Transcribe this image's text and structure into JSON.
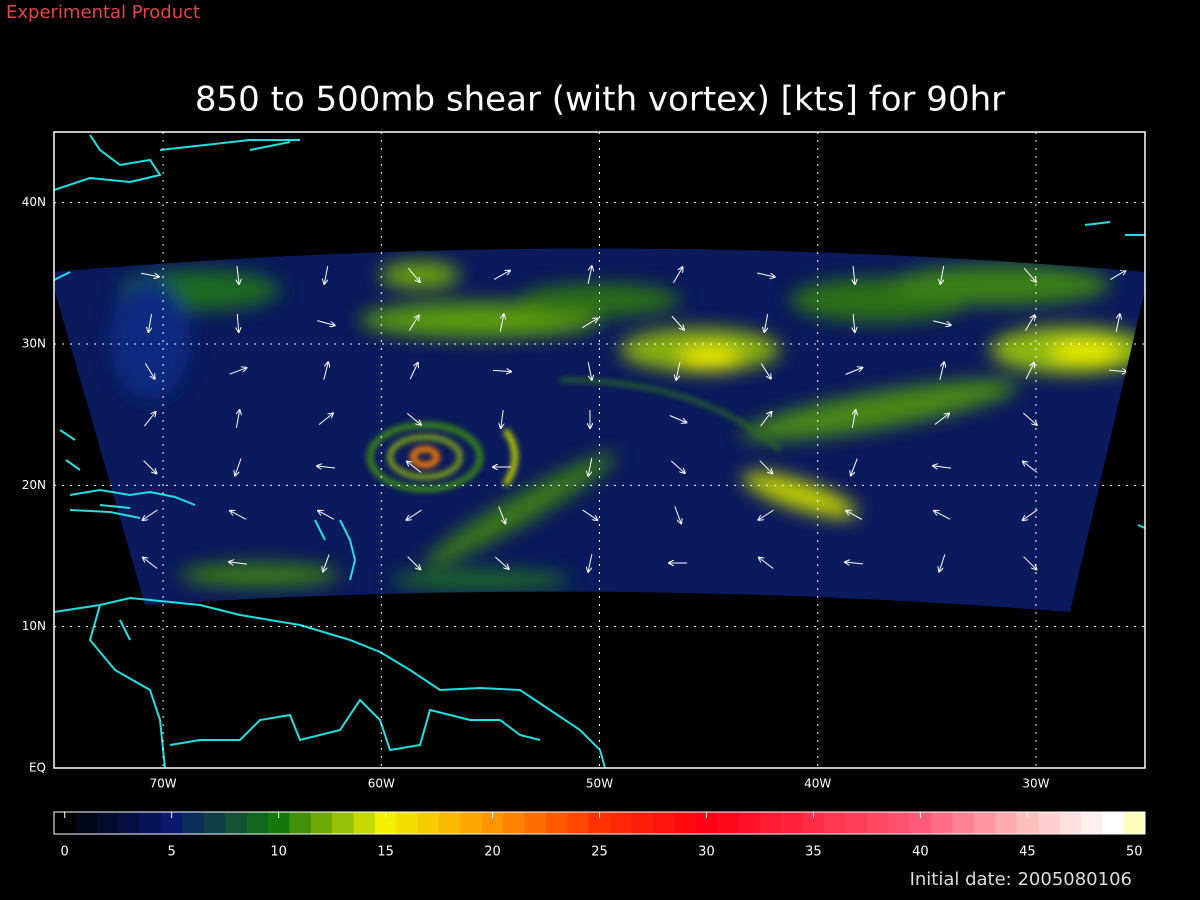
{
  "header": {
    "note": "Experimental Product",
    "title": "850 to 500mb shear (with vortex) [kts] for 90hr"
  },
  "map": {
    "xlim": [
      -75,
      -25
    ],
    "ylim": [
      0,
      45
    ],
    "xticks": [
      {
        "value": -70,
        "label": "70W"
      },
      {
        "value": -60,
        "label": "60W"
      },
      {
        "value": -50,
        "label": "50W"
      },
      {
        "value": -40,
        "label": "40W"
      },
      {
        "value": -30,
        "label": "30W"
      }
    ],
    "yticks": [
      {
        "value": 0,
        "label": "EQ"
      },
      {
        "value": 10,
        "label": "10N"
      },
      {
        "value": 20,
        "label": "20N"
      },
      {
        "value": 30,
        "label": "30N"
      },
      {
        "value": 40,
        "label": "40N"
      }
    ],
    "grid": true
  },
  "colorbar": {
    "lim": [
      -0.5,
      50.5
    ],
    "ticks": [
      0,
      5,
      10,
      15,
      20,
      25,
      30,
      35,
      40,
      45,
      50
    ]
  },
  "footer": {
    "initial_date": "Initial date: 2005080106"
  }
}
